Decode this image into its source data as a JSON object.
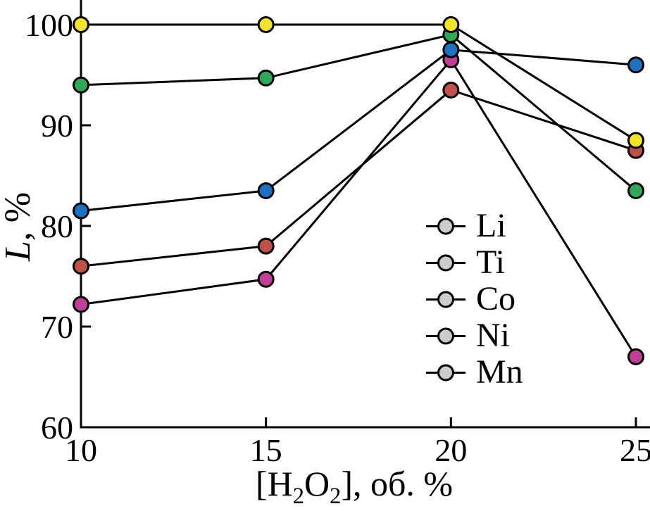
{
  "chart_data": {
    "type": "line",
    "title": "",
    "xlabel": "[H2O2], об. %",
    "xlabel_parts": {
      "open": "[H",
      "sub1": "2",
      "mid": "O",
      "sub2": "2",
      "close": "], об. %"
    },
    "ylabel": "L, %",
    "ylabel_parts": {
      "variable": "L",
      "unit": ", %"
    },
    "x": [
      10,
      15,
      20,
      25
    ],
    "x_ticks": [
      "10",
      "15",
      "20",
      "25"
    ],
    "y_ticks": [
      "60",
      "70",
      "80",
      "90",
      "100"
    ],
    "xlim": [
      10,
      25
    ],
    "ylim": [
      60,
      102.5
    ],
    "grid": false,
    "legend_position": "middle-right",
    "axis_color": "#000000",
    "line_color": "#000000",
    "series": [
      {
        "name": "Li",
        "color": "#f4e32c",
        "values": [
          100,
          100,
          100,
          88.5
        ]
      },
      {
        "name": "Ti",
        "color": "#c05149",
        "values": [
          76,
          78,
          93.5,
          87.5
        ]
      },
      {
        "name": "Co",
        "color": "#1f70c1",
        "values": [
          81.5,
          83.5,
          97.5,
          96
        ]
      },
      {
        "name": "Ni",
        "color": "#2fa859",
        "values": [
          94,
          94.7,
          99,
          83.5
        ]
      },
      {
        "name": "Mn",
        "color": "#c23f98",
        "values": [
          72.2,
          74.7,
          96.5,
          67
        ]
      }
    ]
  }
}
